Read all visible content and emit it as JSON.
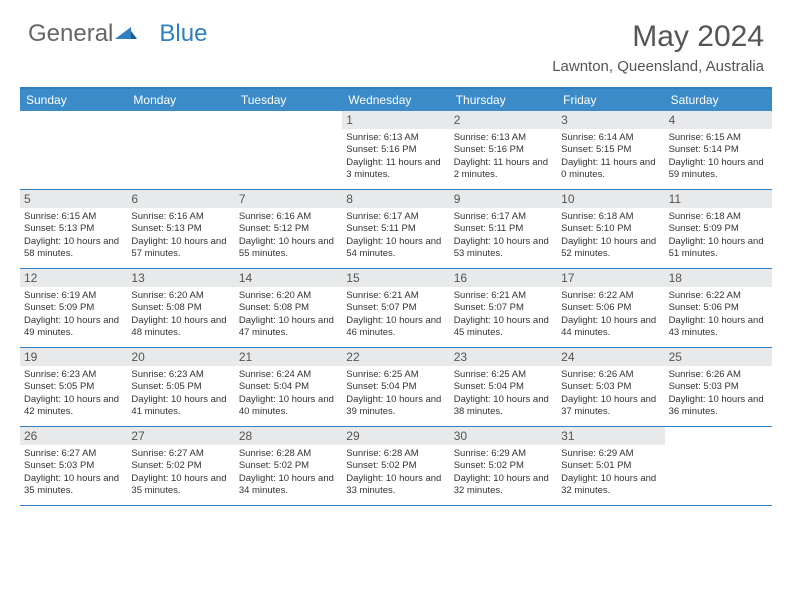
{
  "brand": {
    "part1": "General",
    "part2": "Blue"
  },
  "title": "May 2024",
  "location": "Lawnton, Queensland, Australia",
  "colors": {
    "header_bg": "#3b8bc9",
    "header_text": "#ffffff",
    "border": "#2f7fc1",
    "date_bg": "#e8e9ea",
    "text": "#333333",
    "title": "#555555"
  },
  "dayNames": [
    "Sunday",
    "Monday",
    "Tuesday",
    "Wednesday",
    "Thursday",
    "Friday",
    "Saturday"
  ],
  "weeks": [
    [
      {
        "n": "",
        "sr": "",
        "ss": "",
        "dl": ""
      },
      {
        "n": "",
        "sr": "",
        "ss": "",
        "dl": ""
      },
      {
        "n": "",
        "sr": "",
        "ss": "",
        "dl": ""
      },
      {
        "n": "1",
        "sr": "6:13 AM",
        "ss": "5:16 PM",
        "dl": "11 hours and 3 minutes."
      },
      {
        "n": "2",
        "sr": "6:13 AM",
        "ss": "5:16 PM",
        "dl": "11 hours and 2 minutes."
      },
      {
        "n": "3",
        "sr": "6:14 AM",
        "ss": "5:15 PM",
        "dl": "11 hours and 0 minutes."
      },
      {
        "n": "4",
        "sr": "6:15 AM",
        "ss": "5:14 PM",
        "dl": "10 hours and 59 minutes."
      }
    ],
    [
      {
        "n": "5",
        "sr": "6:15 AM",
        "ss": "5:13 PM",
        "dl": "10 hours and 58 minutes."
      },
      {
        "n": "6",
        "sr": "6:16 AM",
        "ss": "5:13 PM",
        "dl": "10 hours and 57 minutes."
      },
      {
        "n": "7",
        "sr": "6:16 AM",
        "ss": "5:12 PM",
        "dl": "10 hours and 55 minutes."
      },
      {
        "n": "8",
        "sr": "6:17 AM",
        "ss": "5:11 PM",
        "dl": "10 hours and 54 minutes."
      },
      {
        "n": "9",
        "sr": "6:17 AM",
        "ss": "5:11 PM",
        "dl": "10 hours and 53 minutes."
      },
      {
        "n": "10",
        "sr": "6:18 AM",
        "ss": "5:10 PM",
        "dl": "10 hours and 52 minutes."
      },
      {
        "n": "11",
        "sr": "6:18 AM",
        "ss": "5:09 PM",
        "dl": "10 hours and 51 minutes."
      }
    ],
    [
      {
        "n": "12",
        "sr": "6:19 AM",
        "ss": "5:09 PM",
        "dl": "10 hours and 49 minutes."
      },
      {
        "n": "13",
        "sr": "6:20 AM",
        "ss": "5:08 PM",
        "dl": "10 hours and 48 minutes."
      },
      {
        "n": "14",
        "sr": "6:20 AM",
        "ss": "5:08 PM",
        "dl": "10 hours and 47 minutes."
      },
      {
        "n": "15",
        "sr": "6:21 AM",
        "ss": "5:07 PM",
        "dl": "10 hours and 46 minutes."
      },
      {
        "n": "16",
        "sr": "6:21 AM",
        "ss": "5:07 PM",
        "dl": "10 hours and 45 minutes."
      },
      {
        "n": "17",
        "sr": "6:22 AM",
        "ss": "5:06 PM",
        "dl": "10 hours and 44 minutes."
      },
      {
        "n": "18",
        "sr": "6:22 AM",
        "ss": "5:06 PM",
        "dl": "10 hours and 43 minutes."
      }
    ],
    [
      {
        "n": "19",
        "sr": "6:23 AM",
        "ss": "5:05 PM",
        "dl": "10 hours and 42 minutes."
      },
      {
        "n": "20",
        "sr": "6:23 AM",
        "ss": "5:05 PM",
        "dl": "10 hours and 41 minutes."
      },
      {
        "n": "21",
        "sr": "6:24 AM",
        "ss": "5:04 PM",
        "dl": "10 hours and 40 minutes."
      },
      {
        "n": "22",
        "sr": "6:25 AM",
        "ss": "5:04 PM",
        "dl": "10 hours and 39 minutes."
      },
      {
        "n": "23",
        "sr": "6:25 AM",
        "ss": "5:04 PM",
        "dl": "10 hours and 38 minutes."
      },
      {
        "n": "24",
        "sr": "6:26 AM",
        "ss": "5:03 PM",
        "dl": "10 hours and 37 minutes."
      },
      {
        "n": "25",
        "sr": "6:26 AM",
        "ss": "5:03 PM",
        "dl": "10 hours and 36 minutes."
      }
    ],
    [
      {
        "n": "26",
        "sr": "6:27 AM",
        "ss": "5:03 PM",
        "dl": "10 hours and 35 minutes."
      },
      {
        "n": "27",
        "sr": "6:27 AM",
        "ss": "5:02 PM",
        "dl": "10 hours and 35 minutes."
      },
      {
        "n": "28",
        "sr": "6:28 AM",
        "ss": "5:02 PM",
        "dl": "10 hours and 34 minutes."
      },
      {
        "n": "29",
        "sr": "6:28 AM",
        "ss": "5:02 PM",
        "dl": "10 hours and 33 minutes."
      },
      {
        "n": "30",
        "sr": "6:29 AM",
        "ss": "5:02 PM",
        "dl": "10 hours and 32 minutes."
      },
      {
        "n": "31",
        "sr": "6:29 AM",
        "ss": "5:01 PM",
        "dl": "10 hours and 32 minutes."
      },
      {
        "n": "",
        "sr": "",
        "ss": "",
        "dl": ""
      }
    ]
  ],
  "labels": {
    "sunrise": "Sunrise:",
    "sunset": "Sunset:",
    "daylight": "Daylight:"
  }
}
